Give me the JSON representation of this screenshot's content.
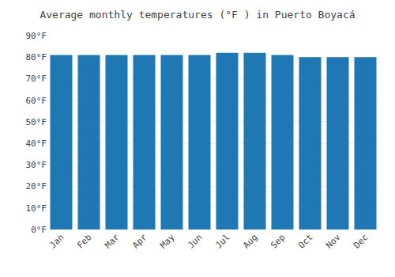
{
  "chart_data": {
    "type": "bar",
    "title": "Average monthly temperatures (°F ) in Puerto Boyacá",
    "categories": [
      "Jan",
      "Feb",
      "Mar",
      "Apr",
      "May",
      "Jun",
      "Jul",
      "Aug",
      "Sep",
      "Oct",
      "Nov",
      "Dec"
    ],
    "values": [
      81,
      81,
      81,
      81,
      81,
      81,
      82,
      82,
      81,
      80,
      80,
      80
    ],
    "ylim": [
      0,
      90
    ],
    "yticks": [
      {
        "value": 0,
        "label": "0°F"
      },
      {
        "value": 10,
        "label": "10°F"
      },
      {
        "value": 20,
        "label": "20°F"
      },
      {
        "value": 30,
        "label": "30°F"
      },
      {
        "value": 40,
        "label": "40°F"
      },
      {
        "value": 50,
        "label": "50°F"
      },
      {
        "value": 60,
        "label": "60°F"
      },
      {
        "value": 70,
        "label": "70°F"
      },
      {
        "value": 80,
        "label": "80°F"
      },
      {
        "value": 90,
        "label": "90°F"
      }
    ],
    "grid": true
  }
}
